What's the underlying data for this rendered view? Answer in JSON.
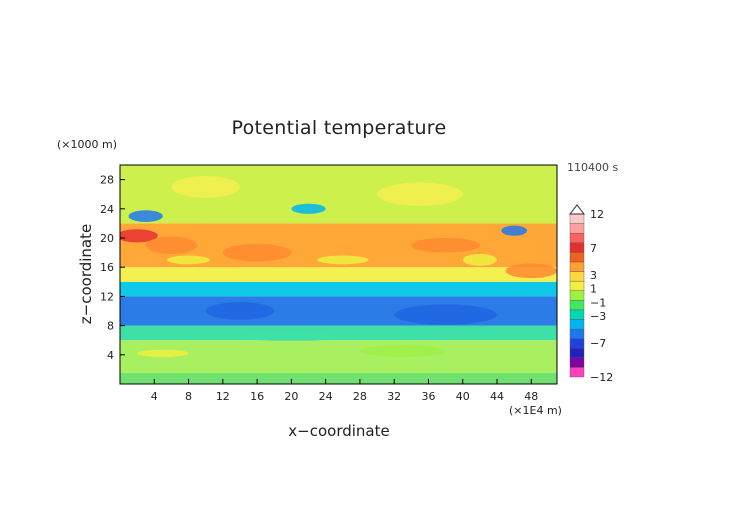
{
  "chart_data": {
    "type": "heatmap",
    "title": "Potential temperature",
    "xlabel": "x−coordinate",
    "ylabel": "z−coordinate",
    "x_units_note": "(×1E4 m)",
    "y_units_note": "(×1000 m)",
    "time_label": "110400 s",
    "xlim": [
      0,
      51
    ],
    "ylim": [
      0,
      30
    ],
    "x_ticks": [
      4,
      8,
      12,
      16,
      20,
      24,
      28,
      32,
      36,
      40,
      44,
      48
    ],
    "y_ticks": [
      4,
      8,
      12,
      16,
      20,
      24,
      28
    ],
    "colorbar": {
      "labels": [
        "12",
        "7",
        "3",
        "1",
        "−1",
        "−3",
        "−7",
        "−12"
      ],
      "label_values": [
        12,
        7,
        3,
        1,
        -1,
        -3,
        -7,
        -12
      ],
      "colors": [
        "#ff40c0",
        "#8000a0",
        "#2020c0",
        "#2040e0",
        "#1e78f0",
        "#00b4f0",
        "#00d8b4",
        "#40e860",
        "#a0f040",
        "#f0f040",
        "#ffd840",
        "#ffa030",
        "#f06020",
        "#e03030",
        "#ff6060",
        "#ffa0a0",
        "#ffc8c8"
      ]
    },
    "bands": [
      {
        "z0": 0,
        "z1": 1.5,
        "level": "green"
      },
      {
        "z0": 1.5,
        "z1": 6,
        "level": "light-green"
      },
      {
        "z0": 6,
        "z1": 8,
        "level": "cyan-green"
      },
      {
        "z0": 8,
        "z1": 12,
        "level": "blue"
      },
      {
        "z0": 12,
        "z1": 14,
        "level": "cyan"
      },
      {
        "z0": 14,
        "z1": 16,
        "level": "yellow"
      },
      {
        "z0": 16,
        "z1": 22,
        "level": "orange"
      },
      {
        "z0": 22,
        "z1": 30,
        "level": "yellow-green"
      }
    ]
  }
}
